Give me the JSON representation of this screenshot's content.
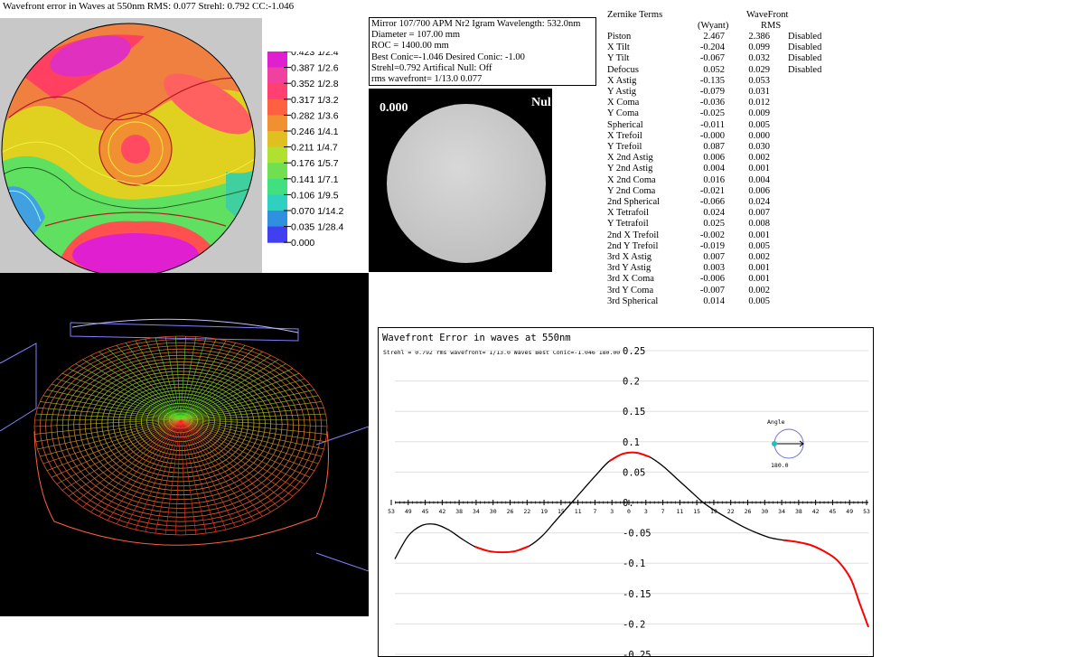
{
  "header": {
    "title": "Wavefront error in Waves at 550nm  RMS: 0.077 Strehl: 0.792 CC:-1.046"
  },
  "contour_scale": {
    "labels": [
      {
        "value": "0.423",
        "fraction": "1/2.4"
      },
      {
        "value": "0.387",
        "fraction": "1/2.6"
      },
      {
        "value": "0.352",
        "fraction": "1/2.8"
      },
      {
        "value": "0.317",
        "fraction": "1/3.2"
      },
      {
        "value": "0.282",
        "fraction": "1/3.6"
      },
      {
        "value": "0.246",
        "fraction": "1/4.1"
      },
      {
        "value": "0.211",
        "fraction": "1/4.7"
      },
      {
        "value": "0.176",
        "fraction": "1/5.7"
      },
      {
        "value": "0.141",
        "fraction": "1/7.1"
      },
      {
        "value": "0.106",
        "fraction": "1/9.5"
      },
      {
        "value": "0.070",
        "fraction": "1/14.2"
      },
      {
        "value": "0.035",
        "fraction": "1/28.4"
      },
      {
        "value": "0.000",
        "fraction": ""
      }
    ],
    "colors": [
      "#e020d0",
      "#f040a0",
      "#ff4070",
      "#ff6040",
      "#f09030",
      "#e0c020",
      "#b0e030",
      "#70e050",
      "#40e080",
      "#30d0c0",
      "#3090e0",
      "#4040f0"
    ]
  },
  "info": {
    "lines": [
      "Mirror 107/700 APM Nr2 Igram Wavelength: 532.0nm",
      "Diameter = 107.00 mm",
      "ROC = 1400.00 mm",
      "Best Conic=-1.046 Desired Conic:  -1.00",
      " Strehl=0.792  Artifical Null: Off",
      "rms wavefront= 1/13.0  0.077"
    ]
  },
  "igram": {
    "value_label": "0.000",
    "null_label": "Nul"
  },
  "zernike": {
    "header_terms": "Zernike Terms",
    "header_wyant": "(Wyant)",
    "header_wavefront": "WaveFront",
    "header_rms": "RMS",
    "rows": [
      {
        "name": "Piston",
        "wyant": "2.467",
        "rms": "2.386",
        "status": "Disabled"
      },
      {
        "name": "X Tilt",
        "wyant": "-0.204",
        "rms": "0.099",
        "status": "Disabled"
      },
      {
        "name": "Y Tilt",
        "wyant": "-0.067",
        "rms": "0.032",
        "status": "Disabled"
      },
      {
        "name": "Defocus",
        "wyant": "0.052",
        "rms": "0.029",
        "status": "Disabled"
      },
      {
        "name": "X Astig",
        "wyant": "-0.135",
        "rms": "0.053",
        "status": ""
      },
      {
        "name": "Y Astig",
        "wyant": "-0.079",
        "rms": "0.031",
        "status": ""
      },
      {
        "name": "X Coma",
        "wyant": "-0.036",
        "rms": "0.012",
        "status": ""
      },
      {
        "name": "Y Coma",
        "wyant": "-0.025",
        "rms": "0.009",
        "status": ""
      },
      {
        "name": "Spherical",
        "wyant": "-0.011",
        "rms": "0.005",
        "status": ""
      },
      {
        "name": "X Trefoil",
        "wyant": "-0.000",
        "rms": "0.000",
        "status": ""
      },
      {
        "name": "Y Trefoil",
        "wyant": "0.087",
        "rms": "0.030",
        "status": ""
      },
      {
        "name": "X 2nd Astig",
        "wyant": "0.006",
        "rms": "0.002",
        "status": ""
      },
      {
        "name": "Y 2nd Astig",
        "wyant": "0.004",
        "rms": "0.001",
        "status": ""
      },
      {
        "name": "X 2nd Coma",
        "wyant": "0.016",
        "rms": "0.004",
        "status": ""
      },
      {
        "name": "Y 2nd Coma",
        "wyant": "-0.021",
        "rms": "0.006",
        "status": ""
      },
      {
        "name": "2nd Spherical",
        "wyant": "-0.066",
        "rms": "0.024",
        "status": ""
      },
      {
        "name": "X Tetrafoil",
        "wyant": "0.024",
        "rms": "0.007",
        "status": ""
      },
      {
        "name": "Y Tetrafoil",
        "wyant": "0.025",
        "rms": "0.008",
        "status": ""
      },
      {
        "name": "2nd X Trefoil",
        "wyant": "-0.002",
        "rms": "0.001",
        "status": ""
      },
      {
        "name": "2nd Y Trefoil",
        "wyant": "-0.019",
        "rms": "0.005",
        "status": ""
      },
      {
        "name": "3rd X Astig",
        "wyant": "0.007",
        "rms": "0.002",
        "status": ""
      },
      {
        "name": "3rd Y Astig",
        "wyant": "0.003",
        "rms": "0.001",
        "status": ""
      },
      {
        "name": "3rd X Coma",
        "wyant": "-0.006",
        "rms": "0.001",
        "status": ""
      },
      {
        "name": "3rd Y Coma",
        "wyant": "-0.007",
        "rms": "0.002",
        "status": ""
      },
      {
        "name": "3rd Spherical",
        "wyant": "0.014",
        "rms": "0.005",
        "status": ""
      }
    ]
  },
  "chart_data": {
    "type": "line",
    "title": "Wavefront Error in waves at 550nm",
    "subtitle": "Strehl = 0.792 rms wavefront= 1/13.0 Waves Best Conic=-1.046 180.00",
    "xlabel": "",
    "ylabel": "",
    "ylim": [
      -0.25,
      0.25
    ],
    "xlim": [
      -53,
      53
    ],
    "y_ticks": [
      "0.25",
      "0.2",
      "0.15",
      "0.1",
      "0.05",
      "0.",
      "-0.05",
      "-0.1",
      "-0.15",
      "-0.2",
      "-0.25"
    ],
    "x_ticks": [
      "53",
      "49",
      "45",
      "42",
      "38",
      "34",
      "30",
      "26",
      "22",
      "19",
      "15",
      "11",
      "7",
      "3",
      "0",
      "3",
      "7",
      "11",
      "15",
      "19",
      "22",
      "26",
      "30",
      "34",
      "38",
      "42",
      "45",
      "49",
      "53"
    ],
    "angle_label": "Angle",
    "angle_value": "180.0",
    "highlight_color": "#ff0000",
    "line_color": "#000000",
    "series": [
      {
        "x": [
          -53,
          -50,
          -47,
          -44,
          -41,
          -38,
          -35,
          -32,
          -29,
          -26,
          -23,
          -20,
          -17,
          -14,
          -11,
          -8,
          -5,
          -2,
          1,
          4,
          7,
          10,
          13,
          16,
          19,
          22,
          25,
          28,
          31,
          34,
          37,
          40,
          43,
          46,
          49,
          51,
          53
        ],
        "y": [
          -0.093,
          -0.055,
          -0.038,
          -0.036,
          -0.045,
          -0.06,
          -0.073,
          -0.08,
          -0.082,
          -0.08,
          -0.072,
          -0.055,
          -0.03,
          -0.005,
          0.02,
          0.045,
          0.068,
          0.08,
          0.082,
          0.075,
          0.06,
          0.04,
          0.02,
          0.0,
          -0.015,
          -0.028,
          -0.04,
          -0.05,
          -0.058,
          -0.062,
          -0.065,
          -0.07,
          -0.08,
          -0.095,
          -0.125,
          -0.165,
          -0.205
        ]
      }
    ]
  }
}
